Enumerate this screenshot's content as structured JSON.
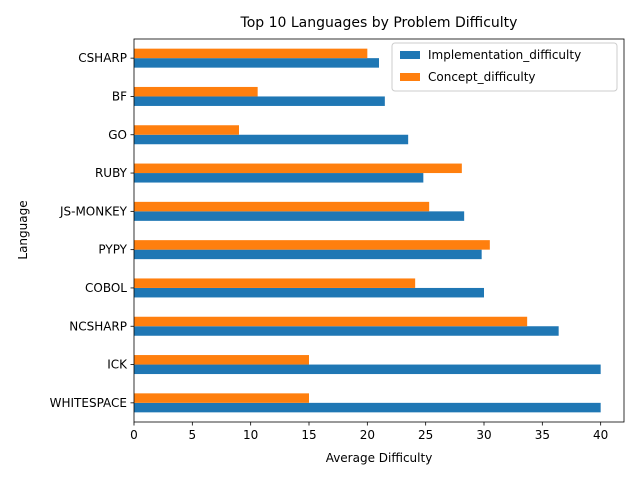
{
  "chart_data": {
    "type": "bar",
    "orientation": "horizontal",
    "title": "Top 10 Languages by Problem Difficulty",
    "xlabel": "Average Difficulty",
    "ylabel": "Language",
    "categories": [
      "WHITESPACE",
      "ICK",
      "NCSHARP",
      "COBOL",
      "PYPY",
      "JS-MONKEY",
      "RUBY",
      "GO",
      "BF",
      "CSHARP"
    ],
    "series": [
      {
        "name": "Implementation_difficulty",
        "color": "#1f77b4",
        "values": [
          40.0,
          40.0,
          36.4,
          30.0,
          29.8,
          28.3,
          24.8,
          23.5,
          21.5,
          21.0
        ]
      },
      {
        "name": "Concept_difficulty",
        "color": "#ff7f0e",
        "values": [
          15.0,
          15.0,
          33.7,
          24.1,
          30.5,
          25.3,
          28.1,
          9.0,
          10.6,
          20.0
        ]
      }
    ],
    "xlim": [
      0,
      42
    ],
    "xticks": [
      0,
      5,
      10,
      15,
      20,
      25,
      30,
      35,
      40
    ],
    "grid": false,
    "legend_position": "top-right"
  }
}
